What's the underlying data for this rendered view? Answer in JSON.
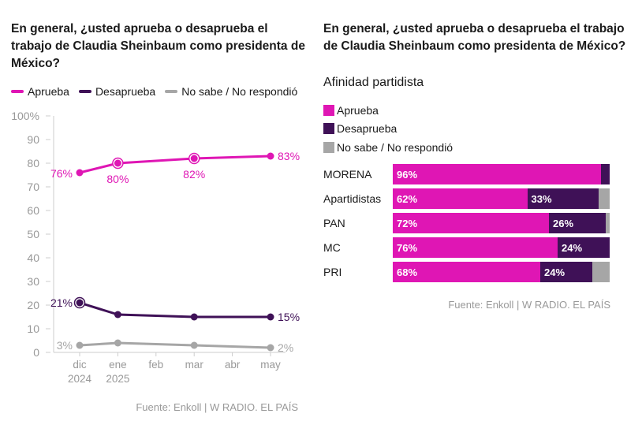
{
  "colors": {
    "aprueba": "#df16b4",
    "desaprueba": "#3f1157",
    "nosabe": "#a6a6a6",
    "axis": "#999999",
    "grid": "#cccccc"
  },
  "chart_data": [
    {
      "type": "line",
      "title": "En general, ¿usted aprueba o desaprueba el trabajo de Claudia Sheinbaum como presidenta de México?",
      "x_ticks": [
        {
          "l1": "dic",
          "l2": "2024"
        },
        {
          "l1": "ene",
          "l2": "2025"
        },
        {
          "l1": "feb",
          "l2": ""
        },
        {
          "l1": "mar",
          "l2": ""
        },
        {
          "l1": "abr",
          "l2": ""
        },
        {
          "l1": "may",
          "l2": ""
        }
      ],
      "y_ticks": [
        "0",
        "10",
        "20",
        "30",
        "40",
        "50",
        "60",
        "70",
        "80",
        "90",
        "100%"
      ],
      "ylim": [
        0,
        100
      ],
      "grid": false,
      "legend_position": "top-left",
      "series": [
        {
          "name": "Aprueba",
          "key": "aprueba",
          "x": [
            0,
            1,
            3,
            5
          ],
          "values": [
            76,
            80,
            82,
            83
          ],
          "labels": [
            "76%",
            "80%",
            "82%",
            "83%"
          ],
          "markers": [
            false,
            true,
            true,
            false
          ]
        },
        {
          "name": "Desaprueba",
          "key": "desaprueba",
          "x": [
            0,
            1,
            3,
            5
          ],
          "values": [
            21,
            16,
            15,
            15
          ],
          "labels": [
            "21%",
            "",
            "",
            "15%"
          ],
          "markers": [
            true,
            false,
            false,
            false
          ]
        },
        {
          "name": "No sabe / No respondió",
          "key": "nosabe",
          "x": [
            0,
            1,
            3,
            5
          ],
          "values": [
            3,
            4,
            3,
            2
          ],
          "labels": [
            "3%",
            "",
            "",
            "2%"
          ],
          "markers": [
            false,
            false,
            false,
            false
          ]
        }
      ],
      "source": "Fuente: Enkoll | W RADIO. EL PAÍS"
    },
    {
      "type": "bar",
      "orientation": "horizontal",
      "stacked": true,
      "title": "En general, ¿usted aprueba o desaprueba el trabajo de Claudia Sheinbaum como presidenta de México?",
      "subtitle": "Afinidad partidista",
      "categories": [
        "MORENA",
        "Apartidistas",
        "PAN",
        "MC",
        "PRI"
      ],
      "legend_position": "top-left",
      "series": [
        {
          "name": "Aprueba",
          "key": "aprueba",
          "values": [
            96,
            62,
            72,
            76,
            68
          ],
          "labels": [
            "96%",
            "62%",
            "72%",
            "76%",
            "68%"
          ]
        },
        {
          "name": "Desaprueba",
          "key": "desaprueba",
          "values": [
            4,
            33,
            26,
            24,
            24
          ],
          "labels": [
            "",
            "33%",
            "26%",
            "24%",
            "24%"
          ]
        },
        {
          "name": "No sabe / No respondió",
          "key": "nosabe",
          "values": [
            0,
            5,
            2,
            0,
            8
          ],
          "labels": [
            "",
            "",
            "",
            "",
            ""
          ]
        }
      ],
      "source": "Fuente: Enkoll | W RADIO. EL PAÍS"
    }
  ]
}
